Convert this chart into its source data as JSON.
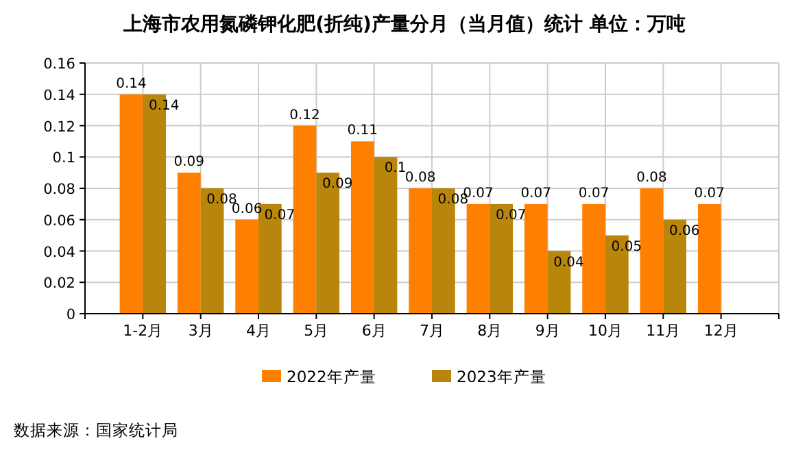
{
  "chart_data": {
    "type": "bar",
    "title": "上海市农用氮磷钾化肥(折纯)产量分月（当月值）统计  单位：万吨",
    "categories": [
      "1-2月",
      "3月",
      "4月",
      "5月",
      "6月",
      "7月",
      "8月",
      "9月",
      "10月",
      "11月",
      "12月"
    ],
    "series": [
      {
        "name": "2022年产量",
        "color": "#ff8000",
        "values": [
          0.14,
          0.09,
          0.06,
          0.12,
          0.11,
          0.08,
          0.07,
          0.07,
          0.07,
          0.08,
          0.07
        ]
      },
      {
        "name": "2023年产量",
        "color": "#b8860b",
        "values": [
          0.14,
          0.08,
          0.07,
          0.09,
          0.1,
          0.08,
          0.07,
          0.04,
          0.05,
          0.06,
          null
        ]
      }
    ],
    "ylim": [
      0,
      0.16
    ],
    "yticks": [
      0,
      0.02,
      0.04,
      0.06,
      0.08,
      0.1,
      0.12,
      0.14,
      0.16
    ],
    "grid": true,
    "legend": "bottom",
    "data_labels": true,
    "annotations": [
      "数据来源：国家统计局"
    ]
  }
}
